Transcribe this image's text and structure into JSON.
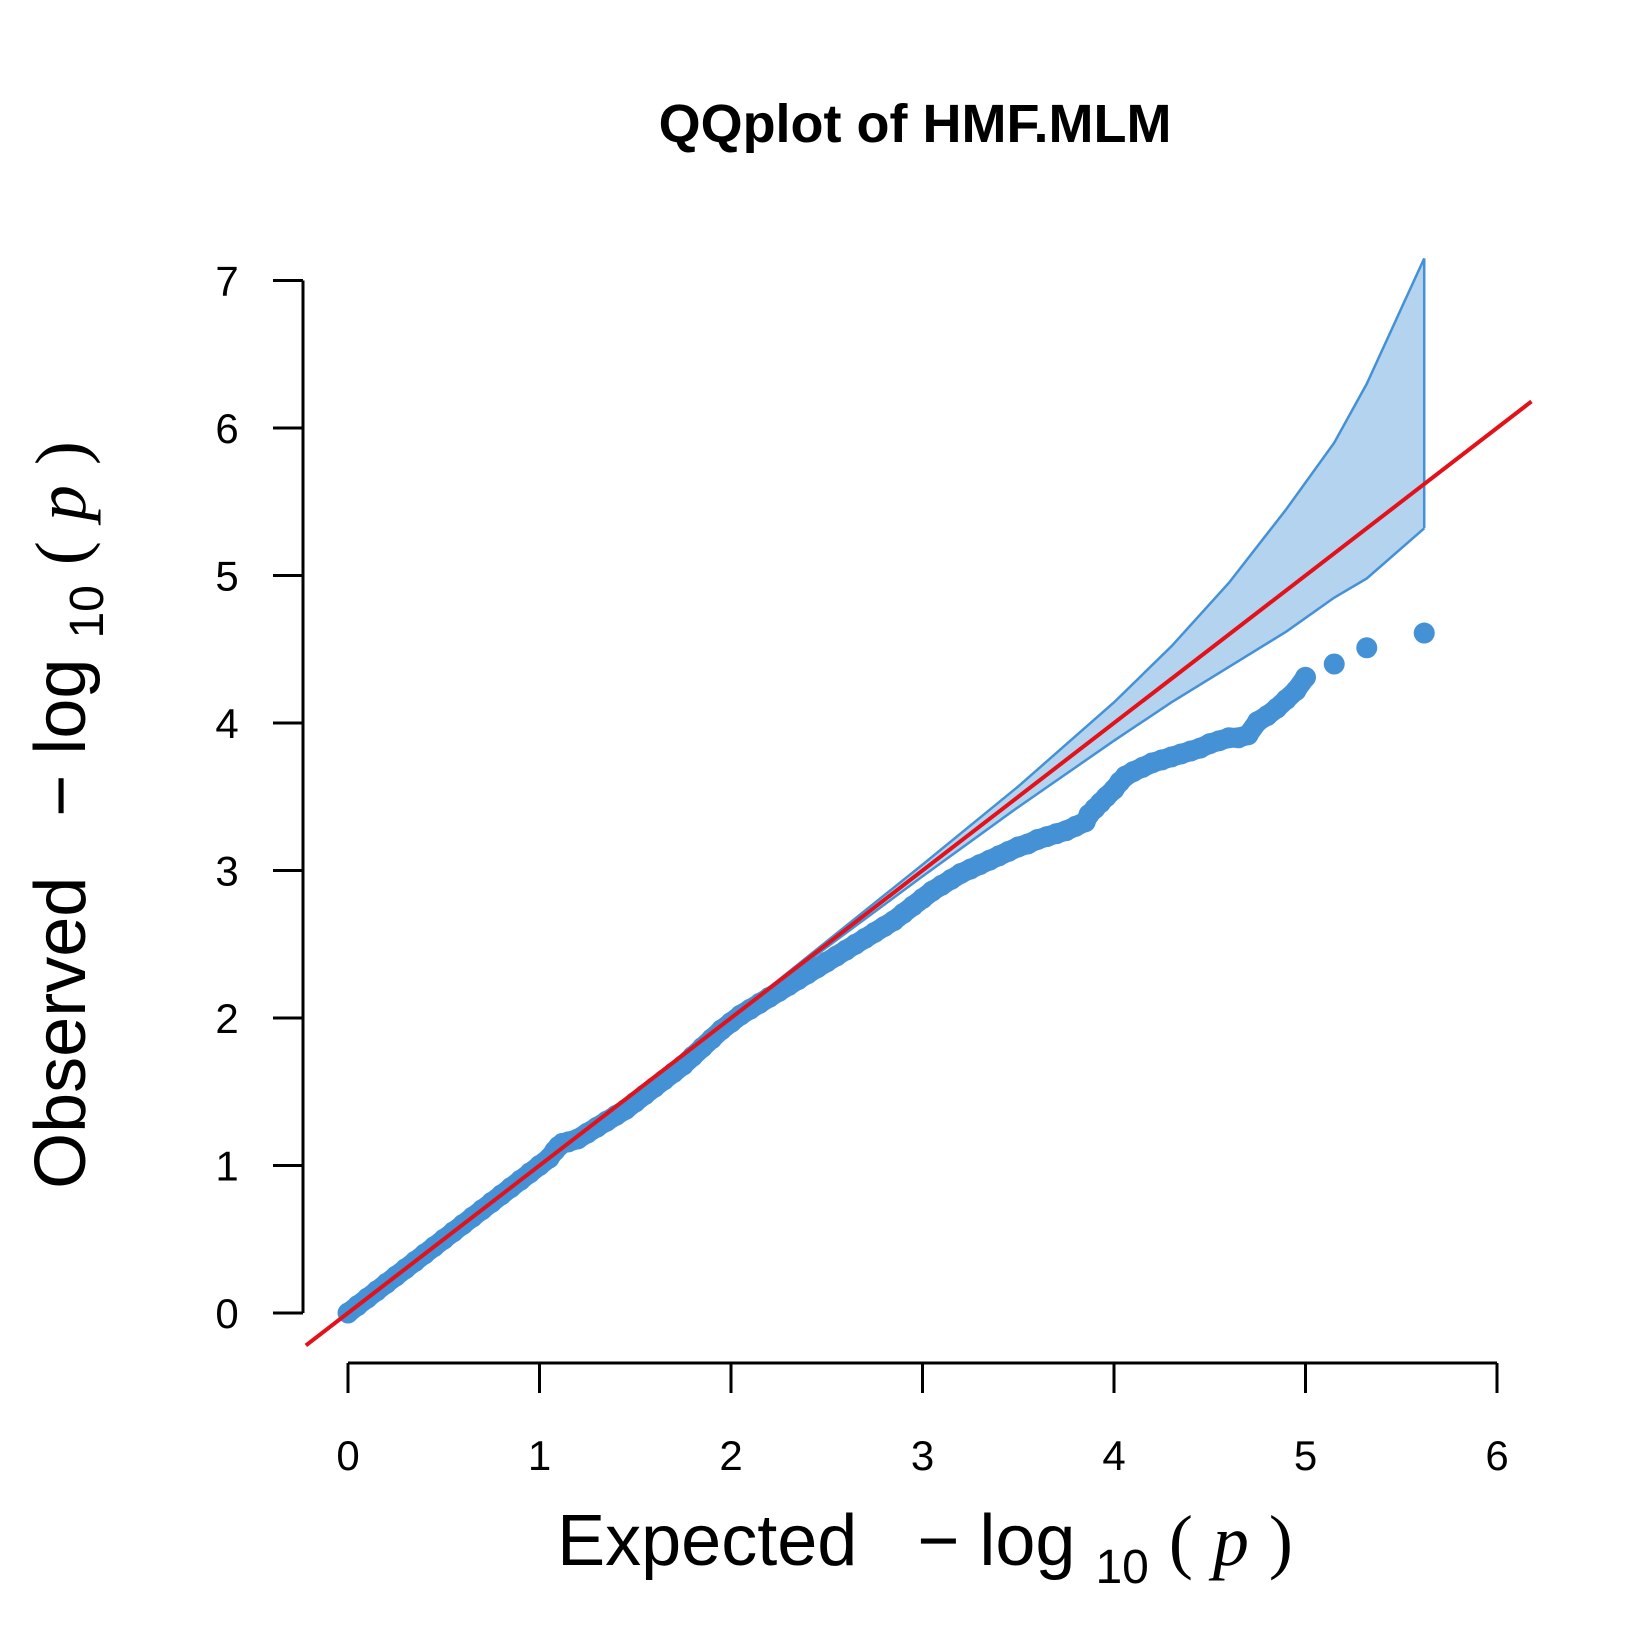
{
  "chart_data": {
    "type": "scatter",
    "title": "QQplot of HMF.MLM",
    "xlabel": {
      "prefix": "Expected",
      "minus": "−",
      "log": "log",
      "sub": "10",
      "open": "(",
      "p": "p",
      "close": ")"
    },
    "ylabel": {
      "prefix": "Observed",
      "minus": "−",
      "log": "log",
      "sub": "10",
      "open": "(",
      "p": "p",
      "close": ")"
    },
    "xlim": [
      0,
      6
    ],
    "ylim": [
      0,
      7
    ],
    "xticks": [
      "0",
      "1",
      "2",
      "3",
      "4",
      "5",
      "6"
    ],
    "yticks": [
      "0",
      "1",
      "2",
      "3",
      "4",
      "5",
      "6",
      "7"
    ],
    "grid": false,
    "colors": {
      "points": "#4591d6",
      "band_fill": "#b3d3ef",
      "band_edge": "#4591d6",
      "reference_line": "#e3121a"
    },
    "reference_line": {
      "slope": 1,
      "intercept": 0
    },
    "confidence_band": {
      "x": [
        0,
        1.0,
        2.0,
        2.5,
        3.0,
        3.5,
        4.0,
        4.3,
        4.6,
        4.9,
        5.15,
        5.32,
        5.62
      ],
      "upper": [
        0,
        1.0,
        2.0,
        2.52,
        3.04,
        3.57,
        4.14,
        4.52,
        4.95,
        5.45,
        5.9,
        6.3,
        7.15
      ],
      "lower": [
        0,
        1.0,
        2.0,
        2.48,
        2.96,
        3.43,
        3.88,
        4.14,
        4.38,
        4.62,
        4.85,
        4.98,
        5.32
      ]
    },
    "series": [
      {
        "x": [
          0.0,
          0.05,
          0.1,
          0.15,
          0.2,
          0.25,
          0.3,
          0.35,
          0.4,
          0.45,
          0.5,
          0.55,
          0.6,
          0.65,
          0.7,
          0.75,
          0.8,
          0.85,
          0.9,
          0.95,
          1.0,
          1.05,
          1.08,
          1.1,
          1.12,
          1.15,
          1.2,
          1.25,
          1.3,
          1.35,
          1.4,
          1.45,
          1.5,
          1.55,
          1.6,
          1.65,
          1.7,
          1.75,
          1.8,
          1.85,
          1.9,
          1.95,
          2.0,
          2.05,
          2.1,
          2.15,
          2.2,
          2.25,
          2.3,
          2.35,
          2.4,
          2.45,
          2.5,
          2.55,
          2.6,
          2.65,
          2.7,
          2.75,
          2.8,
          2.85,
          2.9,
          2.95,
          3.0,
          3.05,
          3.1,
          3.15,
          3.2,
          3.25,
          3.3,
          3.35,
          3.4,
          3.45,
          3.5,
          3.55,
          3.6,
          3.65,
          3.7,
          3.75,
          3.8,
          3.85,
          3.87,
          3.9,
          3.93,
          3.96,
          4.0,
          4.03,
          4.06,
          4.1,
          4.15,
          4.2,
          4.25,
          4.3,
          4.35,
          4.4,
          4.45,
          4.5,
          4.55,
          4.6,
          4.65,
          4.7,
          4.75,
          4.8,
          4.85,
          4.9,
          4.95,
          5.0,
          5.15,
          5.32,
          5.62
        ],
        "y": [
          0.0,
          0.05,
          0.1,
          0.15,
          0.2,
          0.25,
          0.3,
          0.35,
          0.4,
          0.45,
          0.5,
          0.55,
          0.6,
          0.65,
          0.7,
          0.75,
          0.8,
          0.85,
          0.9,
          0.95,
          1.0,
          1.05,
          1.1,
          1.13,
          1.15,
          1.16,
          1.18,
          1.22,
          1.26,
          1.3,
          1.34,
          1.38,
          1.43,
          1.48,
          1.53,
          1.58,
          1.63,
          1.68,
          1.74,
          1.8,
          1.86,
          1.92,
          1.97,
          2.02,
          2.06,
          2.1,
          2.14,
          2.18,
          2.22,
          2.26,
          2.3,
          2.34,
          2.38,
          2.42,
          2.46,
          2.5,
          2.54,
          2.58,
          2.62,
          2.66,
          2.71,
          2.76,
          2.81,
          2.86,
          2.9,
          2.94,
          2.98,
          3.01,
          3.04,
          3.07,
          3.1,
          3.13,
          3.16,
          3.18,
          3.21,
          3.23,
          3.25,
          3.27,
          3.3,
          3.33,
          3.38,
          3.42,
          3.46,
          3.5,
          3.55,
          3.6,
          3.64,
          3.67,
          3.7,
          3.73,
          3.75,
          3.77,
          3.79,
          3.81,
          3.83,
          3.86,
          3.88,
          3.9,
          3.9,
          3.92,
          4.01,
          4.05,
          4.1,
          4.16,
          4.22,
          4.31,
          4.4,
          4.51,
          4.61
        ]
      }
    ]
  }
}
